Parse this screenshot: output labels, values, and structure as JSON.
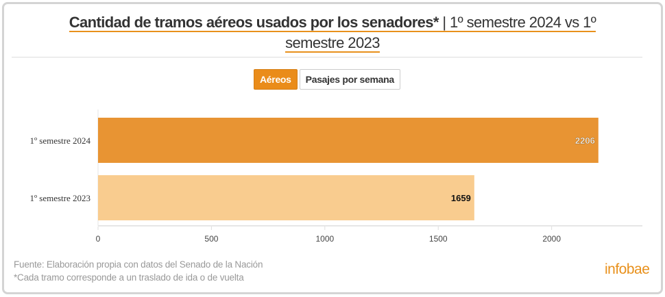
{
  "title": {
    "bold": "Cantidad de tramos aéreos usados por los senadores*",
    "rest_line1": " | 1º semestre 2024 vs 1º",
    "rest_line2": "semestre 2023"
  },
  "toggle": {
    "options": [
      "Aéreos",
      "Pasajes por semana"
    ],
    "selected": "Aéreos"
  },
  "chart_data": {
    "type": "bar",
    "orientation": "horizontal",
    "categories": [
      "1º semestre 2024",
      "1º semestre 2023"
    ],
    "values": [
      2206,
      1659
    ],
    "data_labels": [
      "2206",
      "1659"
    ],
    "colors": [
      "#e89433",
      "#f9cc8f"
    ],
    "xlim": [
      0,
      2400
    ],
    "xticks": [
      0,
      500,
      1000,
      1500,
      2000
    ],
    "xtick_labels": [
      "0",
      "500",
      "1000",
      "1500",
      "2000"
    ],
    "grid": false
  },
  "footer": {
    "source": "Fuente: Elaboración propia con datos del Senado de la Nación",
    "note": "*Cada tramo corresponde a un traslado de ida o de vuelta"
  },
  "logo": "infobae"
}
